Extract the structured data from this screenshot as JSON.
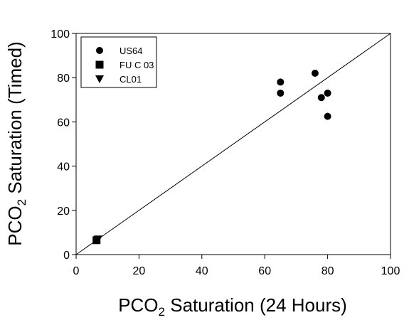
{
  "chart_data": {
    "type": "scatter",
    "xlabel": {
      "prefix": "PCO",
      "sub": "2",
      "suffix": " Saturation (24 Hours)"
    },
    "ylabel": {
      "prefix": "PCO",
      "sub": "2",
      "suffix": " Saturation (Timed)"
    },
    "xlim": [
      0,
      100
    ],
    "ylim": [
      0,
      100
    ],
    "x_ticks": [
      0,
      20,
      40,
      60,
      80,
      100
    ],
    "y_ticks": [
      0,
      20,
      40,
      60,
      80,
      100
    ],
    "grid": false,
    "legend_position": "top-left",
    "reference_line": {
      "from": [
        0,
        0
      ],
      "to": [
        100,
        100
      ]
    },
    "series": [
      {
        "name": "US64",
        "marker": "circle",
        "color": "#000000",
        "points": [
          [
            65,
            78
          ],
          [
            65,
            73
          ],
          [
            76,
            82
          ],
          [
            78,
            71
          ],
          [
            80,
            73
          ],
          [
            80,
            62.5
          ]
        ]
      },
      {
        "name": "FU C 03",
        "marker": "square",
        "color": "#000000",
        "points": [
          [
            6.5,
            6.5
          ]
        ]
      },
      {
        "name": "CL01",
        "marker": "triangle-down",
        "color": "#000000",
        "points": [
          [
            7,
            7
          ]
        ]
      }
    ]
  }
}
